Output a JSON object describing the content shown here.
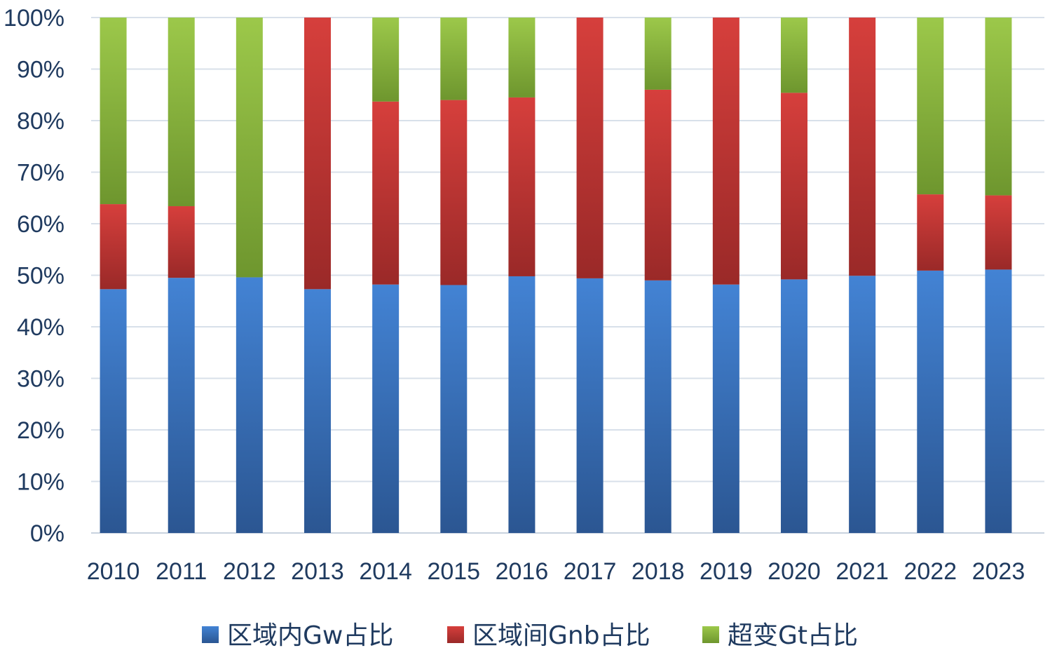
{
  "chart_data": {
    "type": "bar",
    "stacked": true,
    "categories": [
      "2010",
      "2011",
      "2012",
      "2013",
      "2014",
      "2015",
      "2016",
      "2017",
      "2018",
      "2019",
      "2020",
      "2021",
      "2022",
      "2023"
    ],
    "series": [
      {
        "name": "区域内Gw占比",
        "color": "#3a6fb8",
        "values": [
          47.3,
          49.5,
          49.6,
          47.3,
          48.2,
          48.1,
          49.8,
          49.4,
          49.0,
          48.2,
          49.2,
          49.9,
          50.9,
          51.1
        ]
      },
      {
        "name": "区域间Gnb占比",
        "color": "#be3432",
        "values": [
          16.5,
          13.9,
          0.0,
          52.7,
          35.5,
          35.9,
          34.7,
          50.6,
          37.0,
          51.8,
          36.2,
          50.1,
          14.8,
          14.4
        ]
      },
      {
        "name": "超变Gt占比",
        "color": "#8bb83e",
        "values": [
          36.2,
          36.6,
          50.4,
          0.0,
          16.3,
          16.0,
          15.5,
          0.0,
          14.0,
          0.0,
          14.6,
          0.0,
          34.3,
          34.5
        ]
      }
    ],
    "y_ticks": [
      "0%",
      "10%",
      "20%",
      "30%",
      "40%",
      "50%",
      "60%",
      "70%",
      "80%",
      "90%",
      "100%"
    ],
    "ylim": [
      0,
      100
    ],
    "grid": true,
    "legend": "bottom"
  }
}
